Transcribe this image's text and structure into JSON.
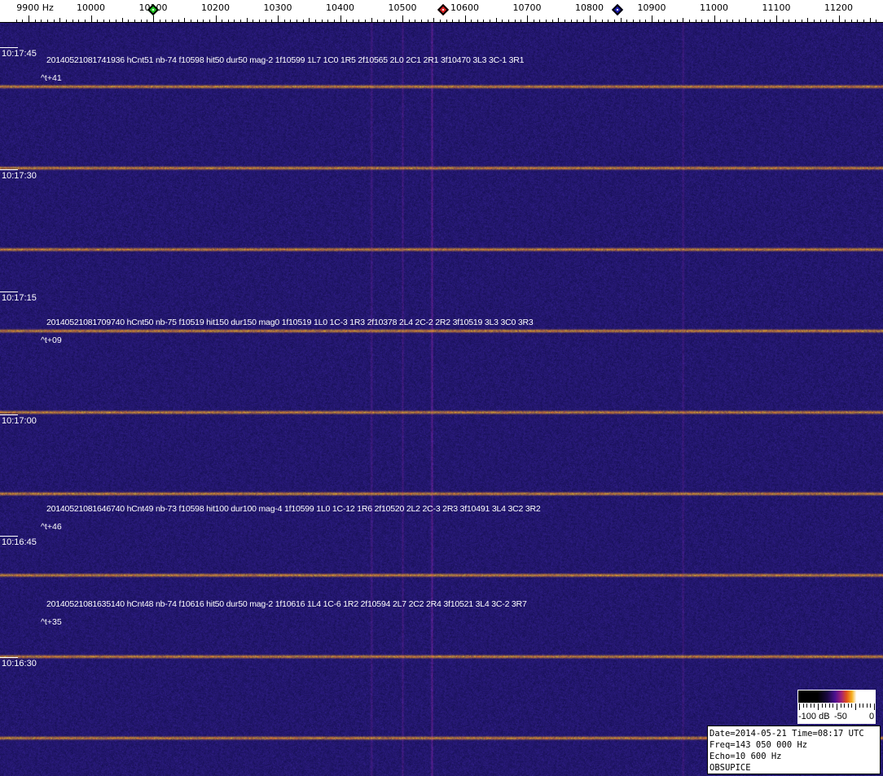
{
  "freq_axis": {
    "unit": "Hz",
    "labels": [
      "9900 Hz",
      "10000",
      "10100",
      "10200",
      "10300",
      "10400",
      "10500",
      "10600",
      "10700",
      "10800",
      "10900",
      "11000",
      "11100",
      "11200"
    ],
    "values": [
      9900,
      10000,
      10100,
      10200,
      10300,
      10400,
      10500,
      10600,
      10700,
      10800,
      10900,
      11000,
      11100,
      11200
    ],
    "markers": [
      {
        "name": "green",
        "freq": 10100,
        "color": "#22cc22"
      },
      {
        "name": "red",
        "freq": 10565,
        "color": "#dd2222"
      },
      {
        "name": "blue",
        "freq": 10845,
        "color": "#1a1aaa"
      }
    ]
  },
  "time_labels": [
    "10:17:45",
    "10:17:30",
    "10:17:15",
    "10:17:00",
    "10:16:45",
    "10:16:30"
  ],
  "annotations": [
    {
      "text": "20140521081741936 hCnt51 nb-74 f10598 hit50 dur50 mag-2 1f10599 1L7 1C0 1R5 2f10565 2L0 2C1 2R1 3f10470 3L3 3C-1 3R1",
      "delta": "^t+41"
    },
    {
      "text": "20140521081709740 hCnt50 nb-75 f10519 hit150 dur150 mag0 1f10519 1L0 1C-3 1R3 2f10378 2L4 2C-2 2R2 3f10519 3L3 3C0 3R3",
      "delta": "^t+09"
    },
    {
      "text": "20140521081646740 hCnt49 nb-73 f10598 hit100 dur100 mag-4 1f10599 1L0 1C-12 1R6 2f10520 2L2 2C-3 2R3 3f10491 3L4 3C2 3R2",
      "delta": "^t+46"
    },
    {
      "text": "20140521081635140 hCnt48 nb-74 f10616 hit50 dur50 mag-2 1f10616 1L4 1C-6 1R2 2f10594 2L7 2C2 2R4 3f10521 3L4 3C-2 3R7",
      "delta": "^t+35"
    }
  ],
  "colorbar": {
    "labels": [
      "-100 dB",
      "-50",
      "0"
    ]
  },
  "info": {
    "line1": "Date=2014-05-21 Time=08:17 UTC",
    "line2": "Freq=143 050 000 Hz",
    "line3": "Echo=10 600 Hz",
    "line4": "OBSUPICE"
  },
  "colors": {
    "background": "#1c1466",
    "trace": "#f0a030",
    "noise_peak": "#6a2aa0"
  }
}
